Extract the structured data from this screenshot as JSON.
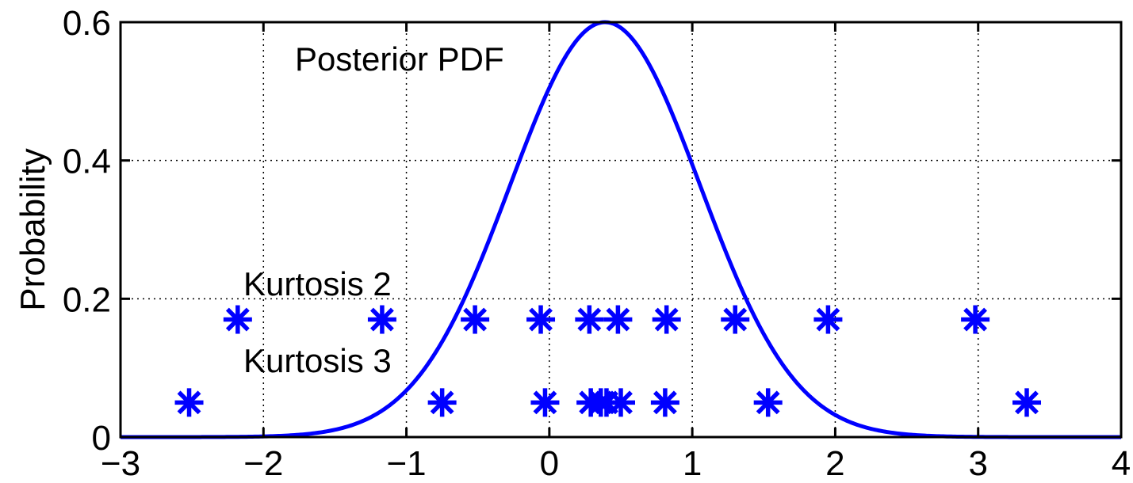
{
  "chart_data": {
    "type": "line",
    "title": "",
    "xlabel": "",
    "ylabel": "Probability",
    "xlim": [
      -3,
      4
    ],
    "ylim": [
      0,
      0.6
    ],
    "xticks": [
      -3,
      -2,
      -1,
      0,
      1,
      2,
      3,
      4
    ],
    "yticks": [
      0,
      0.2,
      0.4,
      0.6
    ],
    "xtick_labels": [
      "−3",
      "−2",
      "−1",
      "0",
      "1",
      "2",
      "3",
      "4"
    ],
    "ytick_labels": [
      "0",
      "0.2",
      "0.4",
      "0.6"
    ],
    "grid": true,
    "line_color": "#0000ff",
    "marker_color": "#0000ff",
    "curve": {
      "label": "Posterior PDF",
      "distribution": "gaussian",
      "mean": 0.39,
      "sigma": 0.665,
      "peak": 0.6
    },
    "series": [
      {
        "label": "Kurtosis 2",
        "marker": "asterisk",
        "y": 0.17,
        "x": [
          -2.18,
          -1.17,
          -0.52,
          -0.06,
          0.28,
          0.48,
          0.82,
          1.3,
          1.95,
          2.98
        ]
      },
      {
        "label": "Kurtosis 3",
        "marker": "asterisk",
        "y": 0.05,
        "x": [
          -2.52,
          -0.75,
          -0.03,
          0.29,
          0.36,
          0.4,
          0.5,
          0.81,
          1.53,
          3.34
        ]
      }
    ],
    "annotations": [
      {
        "text": "Posterior PDF",
        "x": -1.78,
        "y": 0.53
      },
      {
        "text": "Kurtosis 2",
        "x": -2.14,
        "y": 0.205
      },
      {
        "text": "Kurtosis 3",
        "x": -2.14,
        "y": 0.094
      }
    ]
  }
}
